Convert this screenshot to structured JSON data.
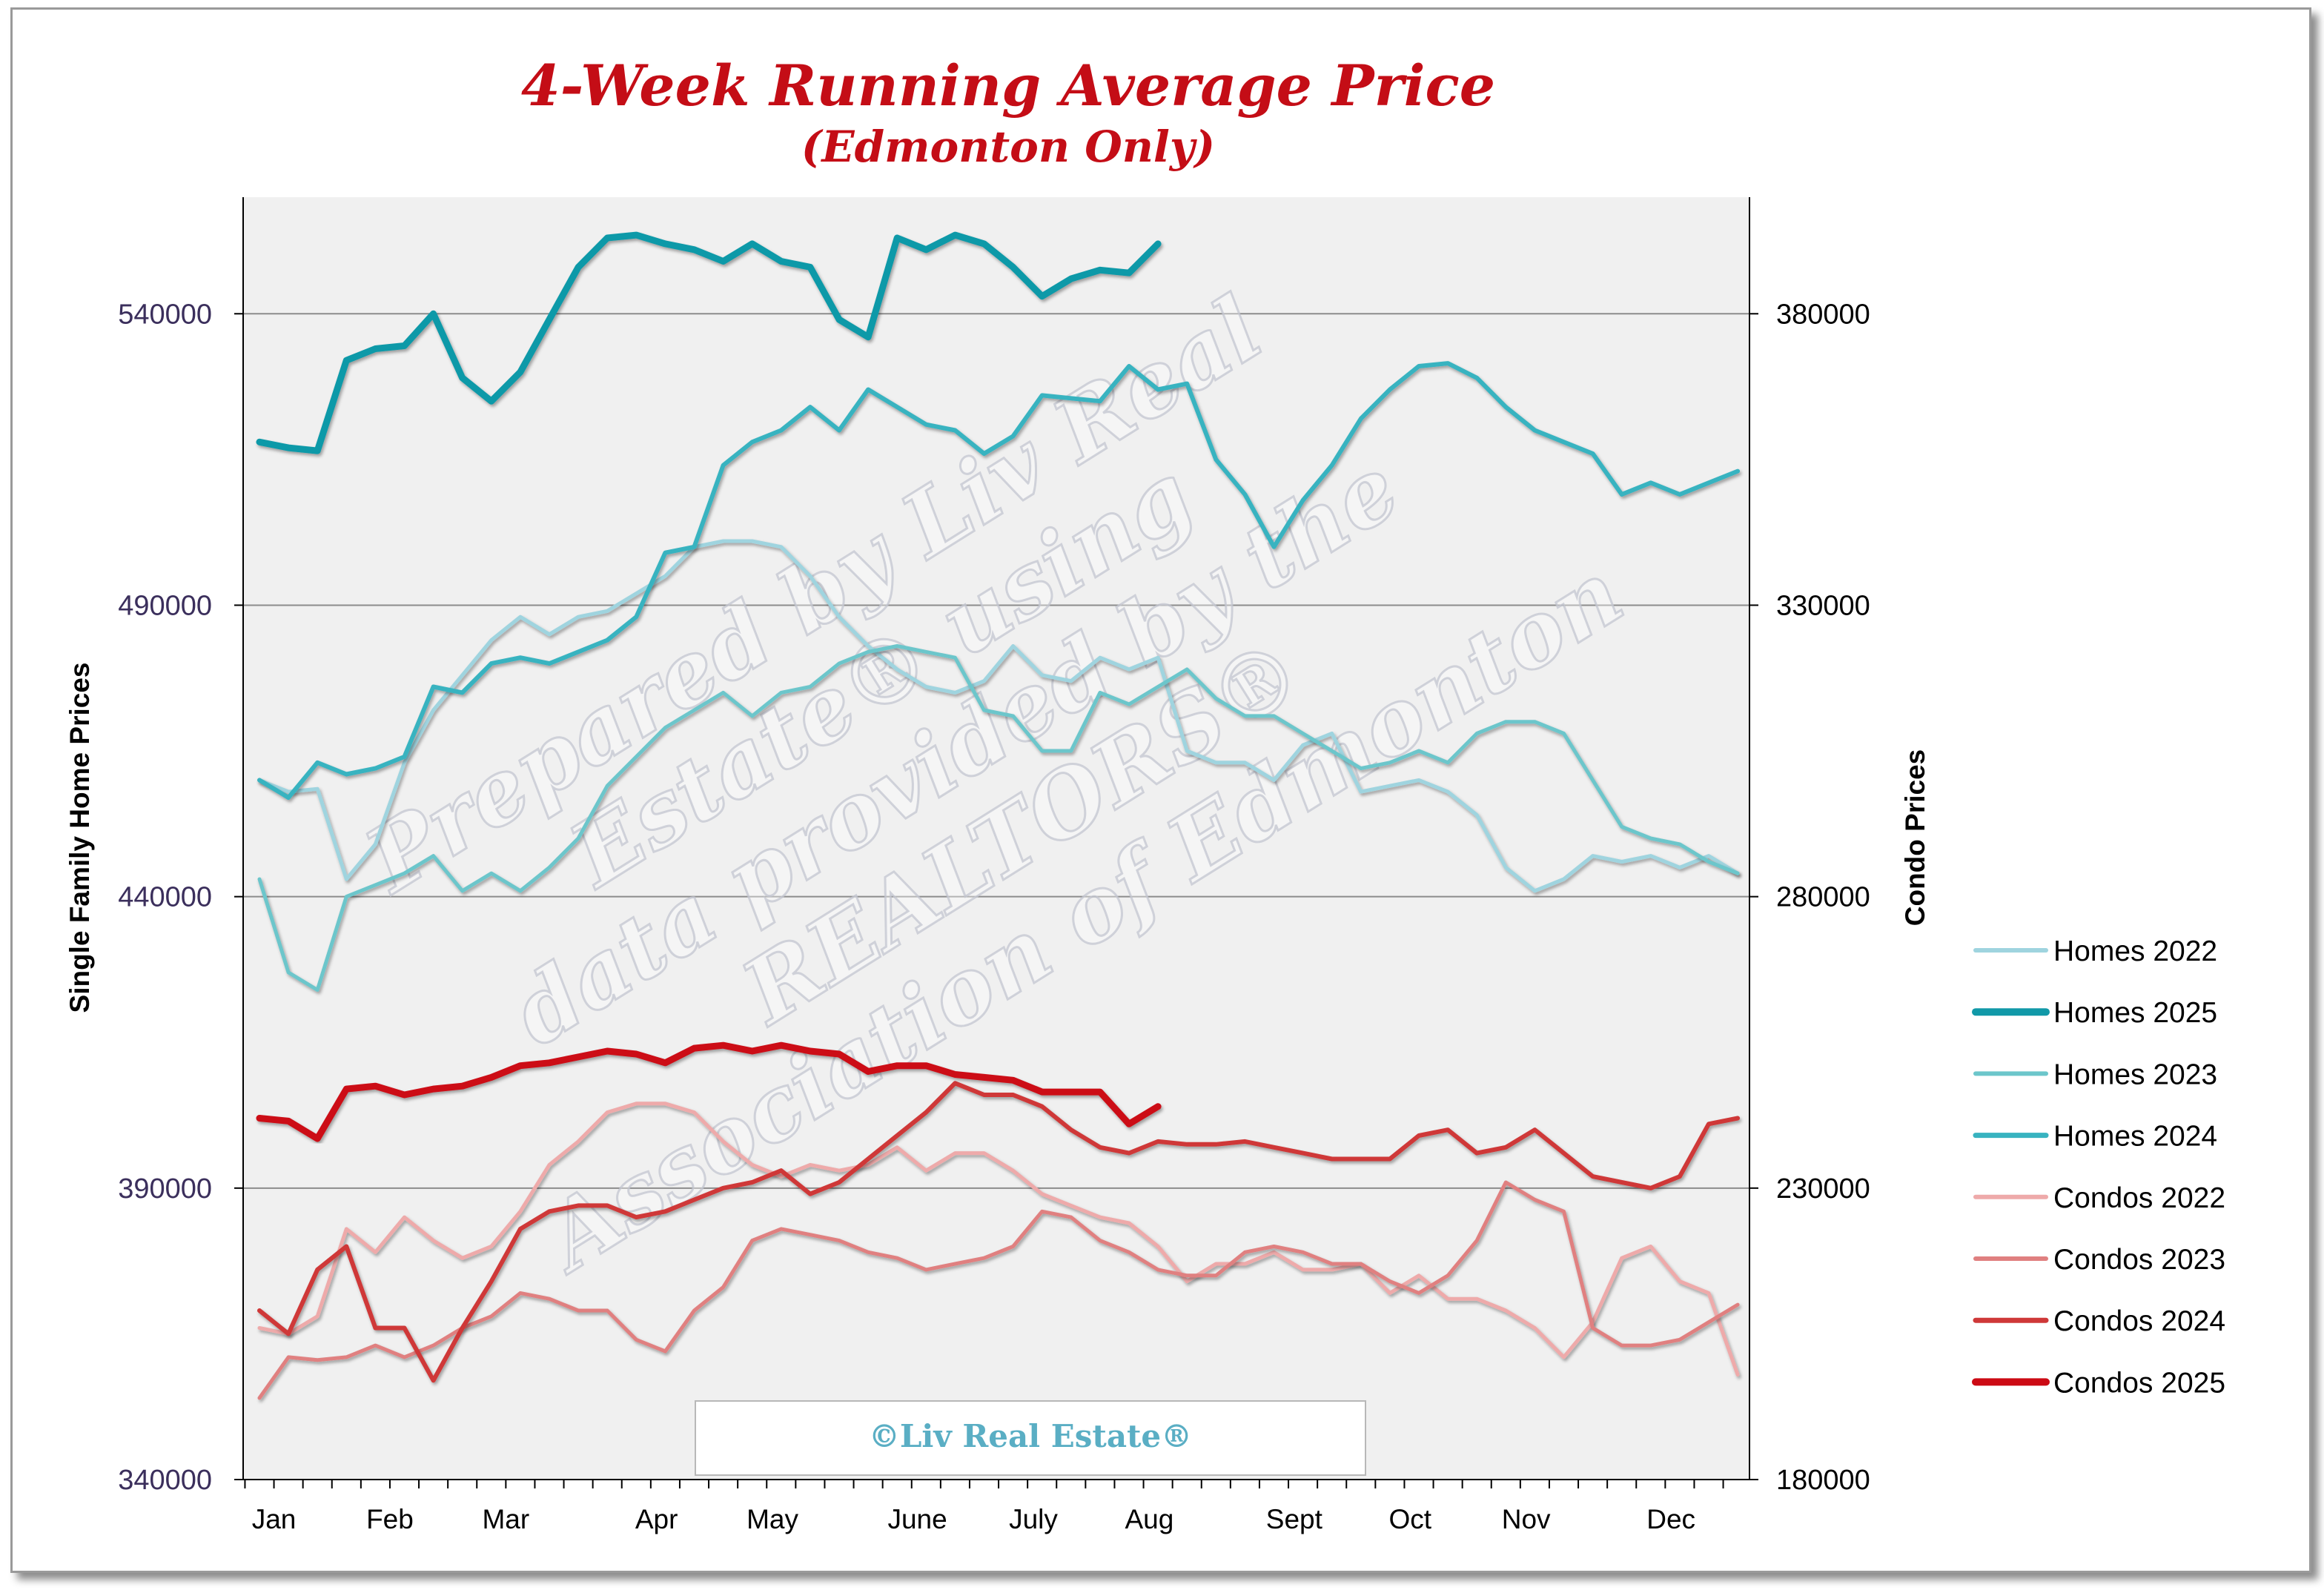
{
  "chart_data": {
    "type": "line",
    "title": "4-Week Running Average Price",
    "subtitle": "(Edmonton Only)",
    "ylabel_left": "Single Family Home Prices",
    "ylabel_right": "Condo Prices",
    "ylim_left": [
      340000,
      560000
    ],
    "ylim_right": [
      180000,
      400000
    ],
    "yticks_left": [
      "540000",
      "490000",
      "440000",
      "390000",
      "340000"
    ],
    "yticks_right": [
      "380000",
      "330000",
      "280000",
      "230000",
      "180000"
    ],
    "months": [
      "Jan",
      "Feb",
      "Mar",
      "Apr",
      "May",
      "June",
      "July",
      "Aug",
      "Sept",
      "Oct",
      "Nov",
      "Dec"
    ],
    "month_week": [
      0.5,
      4.5,
      8.5,
      13.7,
      17.7,
      22.7,
      26.7,
      30.7,
      35.7,
      39.7,
      43.7,
      48.7
    ],
    "weeks_total": 52,
    "grid": true,
    "legend_position": "right",
    "watermark_lines": [
      "Prepared by Liv Real",
      "Estate® using",
      "data provided by the",
      "REALTORS®",
      "Association of Edmonton"
    ],
    "credit": "©Liv Real Estate®",
    "series": [
      {
        "name": "Homes 2022",
        "axis": "left",
        "color": "#9fd4df",
        "width": 5,
        "values": [
          460000,
          458000,
          458500,
          443000,
          449000,
          463000,
          472000,
          478000,
          484000,
          488000,
          485000,
          488000,
          489000,
          492000,
          495000,
          500000,
          501000,
          501000,
          500000,
          495000,
          488000,
          483000,
          479000,
          476000,
          475000,
          477000,
          483000,
          478000,
          477000,
          481000,
          479000,
          481000,
          465000,
          463000,
          463000,
          460000,
          466000,
          468000,
          458000,
          459000,
          460000,
          458000,
          454000,
          445000,
          441000,
          443000,
          447000,
          446000,
          447000,
          445000,
          447000,
          444000
        ]
      },
      {
        "name": "Homes 2025",
        "axis": "left",
        "color": "#1199a8",
        "width": 9,
        "values": [
          518000,
          517000,
          516500,
          532000,
          534000,
          534500,
          540000,
          529000,
          525000,
          530000,
          539000,
          548000,
          553000,
          553500,
          552000,
          551000,
          549000,
          552000,
          549000,
          548000,
          539000,
          536000,
          553000,
          551000,
          553500,
          552000,
          548000,
          543000,
          546000,
          547500,
          547000,
          552000
        ]
      },
      {
        "name": "Homes 2023",
        "axis": "left",
        "color": "#6cc6cb",
        "width": 5,
        "values": [
          443000,
          427000,
          424000,
          440000,
          442000,
          444000,
          447000,
          441000,
          444000,
          441000,
          445000,
          450000,
          459000,
          464000,
          469000,
          472000,
          475000,
          471000,
          475000,
          476000,
          480000,
          482000,
          483000,
          482000,
          481000,
          472000,
          471000,
          465000,
          465000,
          475000,
          473000,
          476000,
          479000,
          474000,
          471000,
          471000,
          468000,
          465000,
          462000,
          463000,
          465000,
          463000,
          468000,
          470000,
          470000,
          468000,
          460000,
          452000,
          450000,
          449000,
          446000,
          444000
        ]
      },
      {
        "name": "Homes 2024",
        "axis": "left",
        "color": "#38b3c0",
        "width": 6,
        "values": [
          460000,
          457000,
          463000,
          461000,
          462000,
          464000,
          476000,
          475000,
          480000,
          481000,
          480000,
          482000,
          484000,
          488000,
          499000,
          500000,
          514000,
          518000,
          520000,
          524000,
          520000,
          527000,
          524000,
          521000,
          520000,
          516000,
          519000,
          526000,
          525500,
          525000,
          531000,
          527000,
          528000,
          515000,
          509000,
          500000,
          508000,
          514000,
          522000,
          527000,
          531000,
          531500,
          529000,
          524000,
          520000,
          518000,
          516000,
          509000,
          511000,
          509000,
          511000,
          513000
        ]
      },
      {
        "name": "Condos 2022",
        "axis": "right",
        "color": "#eeaaaa",
        "width": 5,
        "values": [
          206000,
          205000,
          208000,
          223000,
          219000,
          225000,
          221000,
          218000,
          220000,
          226000,
          234000,
          238000,
          243000,
          244500,
          244500,
          243000,
          238000,
          234000,
          232000,
          234000,
          233000,
          234000,
          237000,
          233000,
          236000,
          236000,
          233000,
          229000,
          227000,
          225000,
          224000,
          220000,
          214000,
          217000,
          217000,
          219000,
          216000,
          216000,
          217000,
          212000,
          215000,
          211000,
          211000,
          209000,
          206000,
          201000,
          207000,
          218000,
          220000,
          214000,
          212000,
          198000
        ]
      },
      {
        "name": "Condos 2023",
        "axis": "right",
        "color": "#e08080",
        "width": 5,
        "values": [
          194000,
          201000,
          200500,
          201000,
          203000,
          201000,
          203000,
          206000,
          208000,
          212000,
          211000,
          209000,
          209000,
          204000,
          202000,
          209000,
          213000,
          221000,
          223000,
          222000,
          221000,
          219000,
          218000,
          216000,
          217000,
          218000,
          220000,
          226000,
          225000,
          221000,
          219000,
          216000,
          215000,
          215000,
          219000,
          220000,
          219000,
          217000,
          217000,
          214000,
          212000,
          215000,
          221000,
          231000,
          228000,
          226000,
          206000,
          203000,
          203000,
          204000,
          207000,
          210000
        ]
      },
      {
        "name": "Condos 2024",
        "axis": "right",
        "color": "#cf3838",
        "width": 6,
        "values": [
          209000,
          205000,
          216000,
          220000,
          206000,
          206000,
          197000,
          206000,
          214000,
          223000,
          226000,
          227000,
          227000,
          225000,
          226000,
          228000,
          230000,
          231000,
          233000,
          229000,
          231000,
          235000,
          239000,
          243000,
          248000,
          246000,
          246000,
          244000,
          240000,
          237000,
          236000,
          238000,
          237500,
          237500,
          238000,
          237000,
          236000,
          235000,
          235000,
          235000,
          239000,
          240000,
          236000,
          237000,
          240000,
          236000,
          232000,
          231000,
          230000,
          232000,
          241000,
          242000
        ]
      },
      {
        "name": "Condos 2025",
        "axis": "right",
        "color": "#cc0a14",
        "width": 9,
        "values": [
          242000,
          241500,
          238500,
          247000,
          247500,
          246000,
          247000,
          247500,
          249000,
          251000,
          251500,
          252500,
          253500,
          253000,
          251500,
          254000,
          254500,
          253500,
          254500,
          253500,
          253000,
          250000,
          251000,
          251000,
          249500,
          249000,
          248500,
          246500,
          246500,
          246500,
          241000,
          244000
        ]
      }
    ]
  }
}
